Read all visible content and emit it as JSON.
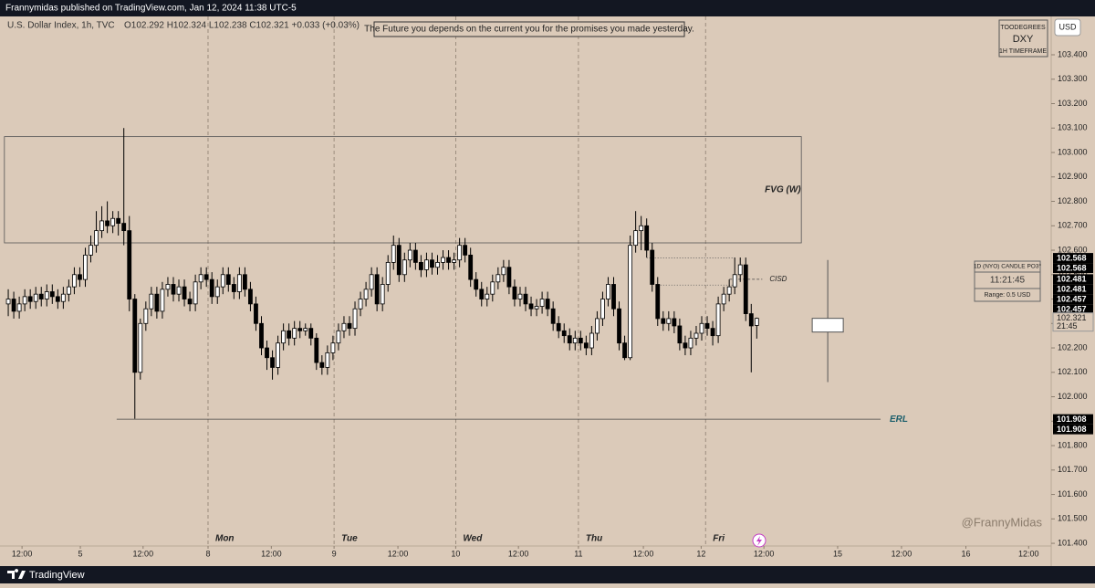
{
  "header": "Frannymidas published on TradingView.com, Jan 12, 2024 11:38 UTC-5",
  "footer": "TradingView",
  "chart_data": {
    "type": "candlestick",
    "symbol": "U.S. Dollar Index, 1h, TVC",
    "ohlc_text": "O102.292  H102.324  L102.238  C102.321  +0.033 (+0.03%)",
    "quote": "The Future you depends on the current you for the promises you made yesterday.",
    "badge": [
      "TOODEGREES",
      "DXY",
      "1H TIMEFRAME"
    ],
    "currency": "USD",
    "watermark": "@FrannyMidas",
    "widget": [
      "1D (NYO) CANDLE PO3°",
      "11:21:45",
      "Range: 0.5 USD"
    ],
    "background": "#dbcab9",
    "up_color": "#ffffff",
    "down_color": "#000000",
    "xlim": [
      -1.5,
      189.5
    ],
    "ylim": [
      101.389,
      103.557
    ],
    "xticks": [
      {
        "value": 2.5,
        "label": "12:00"
      },
      {
        "value": 13.1,
        "label": "5"
      },
      {
        "value": 24.5,
        "label": "12:00"
      },
      {
        "value": 36.3,
        "label": "8"
      },
      {
        "value": 47.8,
        "label": "12:00"
      },
      {
        "value": 59.2,
        "label": "9"
      },
      {
        "value": 70.8,
        "label": "12:00"
      },
      {
        "value": 81.3,
        "label": "10"
      },
      {
        "value": 92.7,
        "label": "12:00"
      },
      {
        "value": 103.6,
        "label": "11"
      },
      {
        "value": 115.4,
        "label": "12:00"
      },
      {
        "value": 125.9,
        "label": "12"
      },
      {
        "value": 137.3,
        "label": "12:00"
      },
      {
        "value": 150.7,
        "label": "15"
      },
      {
        "value": 162.3,
        "label": "12:00"
      },
      {
        "value": 174,
        "label": "16"
      },
      {
        "value": 185.4,
        "label": "12:00"
      }
    ],
    "yticks": [
      {
        "value": 103.4,
        "label": "103.400"
      },
      {
        "value": 103.3,
        "label": "103.300"
      },
      {
        "value": 103.2,
        "label": "103.200"
      },
      {
        "value": 103.1,
        "label": "103.100"
      },
      {
        "value": 103.0,
        "label": "103.000"
      },
      {
        "value": 102.9,
        "label": "102.900"
      },
      {
        "value": 102.8,
        "label": "102.800"
      },
      {
        "value": 102.7,
        "label": "102.700"
      },
      {
        "value": 102.6,
        "label": "102.600"
      },
      {
        "value": 102.5,
        "label": "102.500"
      },
      {
        "value": 102.4,
        "label": "102.400"
      },
      {
        "value": 102.3,
        "label": "102.300"
      },
      {
        "value": 102.2,
        "label": "102.200"
      },
      {
        "value": 102.1,
        "label": "102.100"
      },
      {
        "value": 102.0,
        "label": "102.000"
      },
      {
        "value": 101.9,
        "label": "101.900"
      },
      {
        "value": 101.8,
        "label": "101.800"
      },
      {
        "value": 101.7,
        "label": "101.700"
      },
      {
        "value": 101.6,
        "label": "101.600"
      },
      {
        "value": 101.5,
        "label": "101.500"
      },
      {
        "value": 101.4,
        "label": "101.400"
      }
    ],
    "sessions": [
      {
        "at": 36.3,
        "label": "Mon"
      },
      {
        "at": 59.2,
        "label": "Tue"
      },
      {
        "at": 81.3,
        "label": "Wed"
      },
      {
        "at": 103.6,
        "label": "Thu"
      },
      {
        "at": 126.7,
        "label": "Fri"
      }
    ],
    "price_labels": [
      {
        "value": 102.568,
        "label": "102.568"
      },
      {
        "value": 102.568,
        "label": "102.568"
      },
      {
        "value": 102.481,
        "label": "102.481"
      },
      {
        "value": 102.481,
        "label": "102.481"
      },
      {
        "value": 102.457,
        "label": "102.457"
      },
      {
        "value": 102.457,
        "label": "102.457"
      },
      {
        "value": 101.908,
        "label": "101.908"
      },
      {
        "value": 101.908,
        "label": "101.908"
      }
    ],
    "last_price": {
      "value": 102.321,
      "label": "102.321",
      "time": "21:45"
    },
    "fvg": {
      "label": "FVG (W)",
      "low": 102.63,
      "high": 103.065,
      "from": -0.7,
      "to": 144.1
    },
    "erl": {
      "label": "ERL",
      "value": 101.908,
      "from": 19.7,
      "to": 158.5
    },
    "cisd": {
      "label": "CISD",
      "value": 102.481,
      "from": 131,
      "to": 137
    },
    "dotted_levels": [
      {
        "value": 102.568,
        "from": 116,
        "to": 132
      },
      {
        "value": 102.457,
        "from": 118,
        "to": 132
      }
    ],
    "po3": {
      "at": 148.9,
      "ohlc": [
        102.265,
        102.56,
        102.06,
        102.321
      ]
    },
    "candles": [
      [
        102.38,
        102.44,
        102.33,
        102.4
      ],
      [
        102.4,
        102.43,
        102.32,
        102.35
      ],
      [
        102.35,
        102.41,
        102.32,
        102.38
      ],
      [
        102.38,
        102.44,
        102.35,
        102.41
      ],
      [
        102.41,
        102.44,
        102.36,
        102.39
      ],
      [
        102.39,
        102.45,
        102.36,
        102.42
      ],
      [
        102.42,
        102.45,
        102.37,
        102.4
      ],
      [
        102.4,
        102.46,
        102.37,
        102.43
      ],
      [
        102.43,
        102.46,
        102.38,
        102.41
      ],
      [
        102.41,
        102.44,
        102.36,
        102.39
      ],
      [
        102.39,
        102.45,
        102.36,
        102.42
      ],
      [
        102.42,
        102.48,
        102.39,
        102.45
      ],
      [
        102.45,
        102.53,
        102.42,
        102.5
      ],
      [
        102.5,
        102.53,
        102.45,
        102.48
      ],
      [
        102.48,
        102.61,
        102.45,
        102.58
      ],
      [
        102.58,
        102.66,
        102.55,
        102.62
      ],
      [
        102.62,
        102.76,
        102.59,
        102.68
      ],
      [
        102.68,
        102.78,
        102.65,
        102.72
      ],
      [
        102.72,
        102.8,
        102.67,
        102.7
      ],
      [
        102.7,
        102.76,
        102.67,
        102.73
      ],
      [
        102.73,
        102.76,
        102.66,
        102.71
      ],
      [
        102.71,
        103.1,
        102.62,
        102.68
      ],
      [
        102.68,
        102.74,
        102.35,
        102.4
      ],
      [
        102.4,
        102.42,
        101.91,
        102.1
      ],
      [
        102.1,
        102.32,
        102.07,
        102.3
      ],
      [
        102.3,
        102.39,
        102.27,
        102.36
      ],
      [
        102.36,
        102.45,
        102.33,
        102.42
      ],
      [
        102.42,
        102.45,
        102.32,
        102.35
      ],
      [
        102.35,
        102.47,
        102.32,
        102.44
      ],
      [
        102.44,
        102.49,
        102.41,
        102.46
      ],
      [
        102.46,
        102.49,
        102.39,
        102.42
      ],
      [
        102.42,
        102.48,
        102.39,
        102.45
      ],
      [
        102.45,
        102.48,
        102.37,
        102.4
      ],
      [
        102.4,
        102.43,
        102.35,
        102.38
      ],
      [
        102.38,
        102.5,
        102.35,
        102.47
      ],
      [
        102.47,
        102.53,
        102.44,
        102.5
      ],
      [
        102.5,
        102.53,
        102.45,
        102.48
      ],
      [
        102.48,
        102.51,
        102.38,
        102.41
      ],
      [
        102.41,
        102.48,
        102.38,
        102.45
      ],
      [
        102.45,
        102.53,
        102.42,
        102.5
      ],
      [
        102.5,
        102.53,
        102.43,
        102.46
      ],
      [
        102.46,
        102.49,
        102.4,
        102.43
      ],
      [
        102.43,
        102.53,
        102.4,
        102.5
      ],
      [
        102.5,
        102.53,
        102.41,
        102.44
      ],
      [
        102.44,
        102.47,
        102.35,
        102.38
      ],
      [
        102.38,
        102.41,
        102.27,
        102.3
      ],
      [
        102.3,
        102.33,
        102.17,
        102.2
      ],
      [
        102.2,
        102.23,
        102.11,
        102.16
      ],
      [
        102.16,
        102.19,
        102.07,
        102.12
      ],
      [
        102.12,
        102.25,
        102.09,
        102.22
      ],
      [
        102.22,
        102.3,
        102.19,
        102.27
      ],
      [
        102.27,
        102.3,
        102.21,
        102.24
      ],
      [
        102.24,
        102.31,
        102.21,
        102.28
      ],
      [
        102.28,
        102.31,
        102.24,
        102.27
      ],
      [
        102.27,
        102.3,
        102.25,
        102.28
      ],
      [
        102.28,
        102.3,
        102.21,
        102.24
      ],
      [
        102.24,
        102.26,
        102.11,
        102.14
      ],
      [
        102.14,
        102.17,
        102.09,
        102.12
      ],
      [
        102.12,
        102.21,
        102.09,
        102.18
      ],
      [
        102.18,
        102.25,
        102.15,
        102.22
      ],
      [
        102.22,
        102.3,
        102.19,
        102.27
      ],
      [
        102.27,
        102.33,
        102.24,
        102.3
      ],
      [
        102.3,
        102.33,
        102.25,
        102.28
      ],
      [
        102.28,
        102.39,
        102.25,
        102.36
      ],
      [
        102.36,
        102.43,
        102.33,
        102.4
      ],
      [
        102.4,
        102.47,
        102.37,
        102.44
      ],
      [
        102.44,
        102.53,
        102.41,
        102.5
      ],
      [
        102.5,
        102.53,
        102.35,
        102.38
      ],
      [
        102.38,
        102.49,
        102.35,
        102.46
      ],
      [
        102.46,
        102.58,
        102.43,
        102.55
      ],
      [
        102.55,
        102.66,
        102.52,
        102.62
      ],
      [
        102.62,
        102.65,
        102.47,
        102.5
      ],
      [
        102.5,
        102.59,
        102.47,
        102.56
      ],
      [
        102.56,
        102.63,
        102.53,
        102.6
      ],
      [
        102.6,
        102.63,
        102.52,
        102.55
      ],
      [
        102.55,
        102.58,
        102.49,
        102.52
      ],
      [
        102.52,
        102.59,
        102.49,
        102.56
      ],
      [
        102.56,
        102.59,
        102.5,
        102.53
      ],
      [
        102.53,
        102.58,
        102.5,
        102.55
      ],
      [
        102.55,
        102.6,
        102.52,
        102.57
      ],
      [
        102.57,
        102.6,
        102.52,
        102.55
      ],
      [
        102.55,
        102.59,
        102.52,
        102.56
      ],
      [
        102.56,
        102.65,
        102.53,
        102.62
      ],
      [
        102.62,
        102.65,
        102.55,
        102.58
      ],
      [
        102.58,
        102.61,
        102.45,
        102.48
      ],
      [
        102.48,
        102.51,
        102.41,
        102.44
      ],
      [
        102.44,
        102.47,
        102.37,
        102.4
      ],
      [
        102.4,
        102.45,
        102.37,
        102.42
      ],
      [
        102.42,
        102.5,
        102.39,
        102.47
      ],
      [
        102.47,
        102.53,
        102.44,
        102.5
      ],
      [
        102.5,
        102.56,
        102.47,
        102.53
      ],
      [
        102.53,
        102.56,
        102.42,
        102.45
      ],
      [
        102.45,
        102.48,
        102.37,
        102.4
      ],
      [
        102.4,
        102.45,
        102.37,
        102.42
      ],
      [
        102.42,
        102.45,
        102.35,
        102.38
      ],
      [
        102.38,
        102.41,
        102.33,
        102.36
      ],
      [
        102.36,
        102.4,
        102.33,
        102.37
      ],
      [
        102.37,
        102.43,
        102.34,
        102.4
      ],
      [
        102.4,
        102.43,
        102.33,
        102.36
      ],
      [
        102.36,
        102.39,
        102.27,
        102.3
      ],
      [
        102.3,
        102.33,
        102.24,
        102.27
      ],
      [
        102.27,
        102.3,
        102.22,
        102.25
      ],
      [
        102.25,
        102.28,
        102.19,
        102.22
      ],
      [
        102.22,
        102.27,
        102.19,
        102.24
      ],
      [
        102.24,
        102.27,
        102.19,
        102.22
      ],
      [
        102.22,
        102.25,
        102.17,
        102.2
      ],
      [
        102.2,
        102.29,
        102.17,
        102.26
      ],
      [
        102.26,
        102.35,
        102.23,
        102.32
      ],
      [
        102.32,
        102.43,
        102.29,
        102.4
      ],
      [
        102.4,
        102.49,
        102.37,
        102.46
      ],
      [
        102.46,
        102.49,
        102.33,
        102.36
      ],
      [
        102.36,
        102.39,
        102.19,
        102.22
      ],
      [
        102.22,
        102.25,
        102.15,
        102.16
      ],
      [
        102.16,
        102.66,
        102.15,
        102.62
      ],
      [
        102.62,
        102.76,
        102.59,
        102.68
      ],
      [
        102.68,
        102.74,
        102.6,
        102.7
      ],
      [
        102.7,
        102.73,
        102.57,
        102.6
      ],
      [
        102.6,
        102.63,
        102.43,
        102.46
      ],
      [
        102.46,
        102.49,
        102.29,
        102.32
      ],
      [
        102.32,
        102.35,
        102.27,
        102.3
      ],
      [
        102.3,
        102.35,
        102.27,
        102.32
      ],
      [
        102.32,
        102.35,
        102.26,
        102.29
      ],
      [
        102.29,
        102.32,
        102.19,
        102.22
      ],
      [
        102.22,
        102.25,
        102.17,
        102.2
      ],
      [
        102.2,
        102.27,
        102.17,
        102.24
      ],
      [
        102.24,
        102.29,
        102.21,
        102.26
      ],
      [
        102.26,
        102.33,
        102.23,
        102.3
      ],
      [
        102.3,
        102.33,
        102.25,
        102.28
      ],
      [
        102.28,
        102.31,
        102.21,
        102.25
      ],
      [
        102.25,
        102.41,
        102.22,
        102.38
      ],
      [
        102.38,
        102.45,
        102.35,
        102.42
      ],
      [
        102.42,
        102.48,
        102.39,
        102.45
      ],
      [
        102.45,
        102.57,
        102.42,
        102.5
      ],
      [
        102.5,
        102.57,
        102.47,
        102.54
      ],
      [
        102.54,
        102.57,
        102.31,
        102.34
      ],
      [
        102.34,
        102.38,
        102.1,
        102.29
      ],
      [
        102.292,
        102.324,
        102.238,
        102.321
      ]
    ]
  }
}
